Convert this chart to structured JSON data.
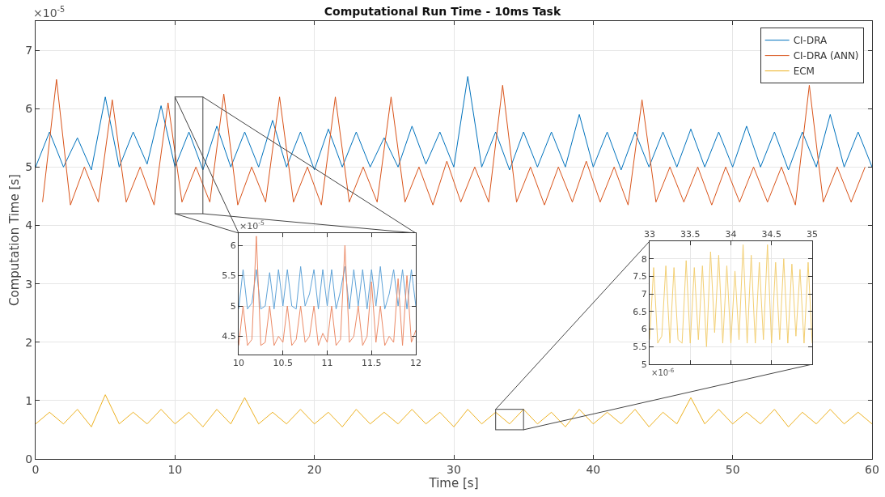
{
  "chart_data": [
    {
      "type": "line",
      "title": "Computational Run Time - 10ms Task",
      "xlabel": "Time [s]",
      "ylabel": "Computation Time [s]",
      "annotations": [
        "×10$^{-5}$"
      ],
      "xlim": [
        0,
        60
      ],
      "xticks": [
        0,
        10,
        20,
        30,
        40,
        50,
        60
      ],
      "ylim": [
        0,
        7.5
      ],
      "yticks": [
        0,
        1,
        2,
        3,
        4,
        5,
        6,
        7
      ],
      "grid": true,
      "legend": "top right",
      "series": [
        {
          "name": "CI-DRA",
          "color": "#0072bd",
          "x": [
            0,
            1,
            2,
            3,
            4,
            5,
            6,
            7,
            8,
            9,
            10,
            11,
            12,
            13,
            14,
            15,
            16,
            17,
            18,
            19,
            20,
            21,
            22,
            23,
            24,
            25,
            26,
            27,
            28,
            29,
            30,
            31,
            32,
            33,
            34,
            35,
            36,
            37,
            38,
            39,
            40,
            41,
            42,
            43,
            44,
            45,
            46,
            47,
            48,
            49,
            50,
            51,
            52,
            53,
            54,
            55,
            56,
            57,
            58,
            59,
            60
          ],
          "values": [
            5.0,
            5.6,
            5.0,
            5.5,
            4.95,
            6.2,
            5.0,
            5.6,
            5.05,
            6.05,
            5.0,
            5.6,
            4.95,
            5.7,
            5.0,
            5.6,
            5.0,
            5.8,
            5.0,
            5.6,
            4.95,
            5.65,
            5.0,
            5.6,
            5.0,
            5.5,
            5.0,
            5.7,
            5.05,
            5.6,
            5.0,
            6.55,
            5.0,
            5.6,
            4.95,
            5.6,
            5.0,
            5.6,
            5.0,
            5.9,
            5.0,
            5.6,
            4.95,
            5.6,
            5.0,
            5.6,
            5.0,
            5.65,
            5.0,
            5.6,
            5.0,
            5.7,
            5.0,
            5.6,
            4.95,
            5.6,
            5.0,
            5.9,
            5.0,
            5.6,
            5.0
          ]
        },
        {
          "name": "CI-DRA (ANN)",
          "color": "#d95319",
          "x": [
            0.5,
            1.5,
            2.5,
            3.5,
            4.5,
            5.5,
            6.5,
            7.5,
            8.5,
            9.5,
            10.5,
            11.5,
            12.5,
            13.5,
            14.5,
            15.5,
            16.5,
            17.5,
            18.5,
            19.5,
            20.5,
            21.5,
            22.5,
            23.5,
            24.5,
            25.5,
            26.5,
            27.5,
            28.5,
            29.5,
            30.5,
            31.5,
            32.5,
            33.5,
            34.5,
            35.5,
            36.5,
            37.5,
            38.5,
            39.5,
            40.5,
            41.5,
            42.5,
            43.5,
            44.5,
            45.5,
            46.5,
            47.5,
            48.5,
            49.5,
            50.5,
            51.5,
            52.5,
            53.5,
            54.5,
            55.5,
            56.5,
            57.5,
            58.5,
            59.5
          ],
          "values": [
            4.4,
            6.5,
            4.35,
            5.0,
            4.4,
            6.15,
            4.4,
            5.0,
            4.35,
            6.1,
            4.4,
            5.0,
            4.4,
            6.25,
            4.35,
            5.0,
            4.4,
            6.2,
            4.4,
            5.0,
            4.35,
            6.2,
            4.4,
            5.0,
            4.4,
            6.2,
            4.4,
            5.0,
            4.35,
            5.1,
            4.4,
            5.0,
            4.4,
            6.4,
            4.4,
            5.0,
            4.35,
            5.0,
            4.4,
            5.1,
            4.4,
            5.0,
            4.35,
            6.15,
            4.4,
            5.0,
            4.4,
            5.0,
            4.35,
            5.0,
            4.4,
            5.0,
            4.4,
            5.0,
            4.35,
            6.4,
            4.4,
            5.0,
            4.4,
            5.0
          ]
        },
        {
          "name": "ECM",
          "color": "#edb120",
          "x": [
            0,
            1,
            2,
            3,
            4,
            5,
            6,
            7,
            8,
            9,
            10,
            11,
            12,
            13,
            14,
            15,
            16,
            17,
            18,
            19,
            20,
            21,
            22,
            23,
            24,
            25,
            26,
            27,
            28,
            29,
            30,
            31,
            32,
            33,
            34,
            35,
            36,
            37,
            38,
            39,
            40,
            41,
            42,
            43,
            44,
            45,
            46,
            47,
            48,
            49,
            50,
            51,
            52,
            53,
            54,
            55,
            56,
            57,
            58,
            59,
            60
          ],
          "values": [
            0.6,
            0.8,
            0.6,
            0.85,
            0.55,
            1.1,
            0.6,
            0.8,
            0.6,
            0.85,
            0.6,
            0.8,
            0.55,
            0.85,
            0.6,
            1.05,
            0.6,
            0.8,
            0.6,
            0.85,
            0.6,
            0.8,
            0.55,
            0.85,
            0.6,
            0.8,
            0.6,
            0.85,
            0.6,
            0.8,
            0.55,
            0.85,
            0.6,
            0.8,
            0.6,
            0.85,
            0.6,
            0.8,
            0.55,
            0.85,
            0.6,
            0.8,
            0.6,
            0.85,
            0.55,
            0.8,
            0.6,
            1.05,
            0.6,
            0.85,
            0.6,
            0.8,
            0.6,
            0.85,
            0.55,
            0.8,
            0.6,
            0.85,
            0.6,
            0.8,
            0.6
          ]
        }
      ]
    },
    {
      "type": "line",
      "annotations": [
        "×10$^{-5}$"
      ],
      "xlim": [
        10,
        12
      ],
      "xticks": [
        10,
        10.5,
        11,
        11.5,
        12
      ],
      "ylim": [
        4.2,
        6.2
      ],
      "yticks": [
        4.5,
        5,
        5.5,
        6
      ],
      "grid": true,
      "series": [
        {
          "color": "#5fa3d8",
          "x": [
            10,
            10.05,
            10.1,
            10.15,
            10.2,
            10.25,
            10.3,
            10.35,
            10.4,
            10.45,
            10.5,
            10.55,
            10.6,
            10.65,
            10.7,
            10.75,
            10.8,
            10.85,
            10.9,
            10.95,
            11,
            11.05,
            11.1,
            11.15,
            11.2,
            11.25,
            11.3,
            11.35,
            11.4,
            11.45,
            11.5,
            11.55,
            11.6,
            11.65,
            11.7,
            11.75,
            11.8,
            11.85,
            11.9,
            11.95,
            12
          ],
          "values": [
            4.95,
            5.6,
            4.95,
            5.05,
            5.6,
            4.95,
            5.0,
            5.55,
            4.95,
            5.6,
            5.0,
            5.6,
            5.0,
            4.95,
            5.65,
            5.0,
            5.2,
            5.6,
            4.95,
            5.6,
            5.0,
            5.6,
            4.95,
            5.25,
            5.65,
            4.95,
            5.6,
            5.0,
            5.6,
            4.95,
            5.6,
            5.0,
            5.65,
            4.95,
            5.2,
            5.6,
            5.0,
            5.6,
            4.95,
            5.6,
            5.0
          ]
        },
        {
          "color": "#ec8a66",
          "x": [
            10,
            10.05,
            10.1,
            10.15,
            10.2,
            10.25,
            10.3,
            10.35,
            10.4,
            10.45,
            10.5,
            10.55,
            10.6,
            10.65,
            10.7,
            10.75,
            10.8,
            10.85,
            10.9,
            10.95,
            11,
            11.05,
            11.1,
            11.15,
            11.2,
            11.25,
            11.3,
            11.35,
            11.4,
            11.45,
            11.5,
            11.55,
            11.6,
            11.65,
            11.7,
            11.75,
            11.8,
            11.85,
            11.9,
            11.95,
            12
          ],
          "values": [
            4.35,
            5.0,
            4.35,
            4.45,
            6.15,
            4.35,
            4.4,
            5.0,
            4.35,
            4.5,
            4.4,
            5.0,
            4.35,
            4.45,
            5.0,
            4.4,
            4.5,
            5.0,
            4.35,
            4.55,
            4.4,
            5.0,
            4.35,
            4.45,
            6.0,
            4.4,
            4.5,
            5.0,
            4.35,
            4.5,
            5.4,
            4.4,
            5.0,
            4.35,
            4.5,
            4.4,
            5.45,
            4.35,
            5.5,
            4.4,
            4.6
          ]
        }
      ]
    },
    {
      "type": "line",
      "annotations": [
        "×10$^{-6}$"
      ],
      "xlim": [
        33,
        35
      ],
      "xticks": [
        33,
        33.5,
        34,
        34.5,
        35
      ],
      "ylim": [
        5,
        8.5
      ],
      "yticks": [
        5,
        5.5,
        6,
        6.5,
        7,
        7.5,
        8
      ],
      "grid": true,
      "series": [
        {
          "color": "#f3cf72",
          "x": [
            33,
            33.05,
            33.1,
            33.15,
            33.2,
            33.25,
            33.3,
            33.35,
            33.4,
            33.45,
            33.5,
            33.55,
            33.6,
            33.65,
            33.7,
            33.75,
            33.8,
            33.85,
            33.9,
            33.95,
            34,
            34.05,
            34.1,
            34.15,
            34.2,
            34.25,
            34.3,
            34.35,
            34.4,
            34.45,
            34.5,
            34.55,
            34.6,
            34.65,
            34.7,
            34.75,
            34.8,
            34.85,
            34.9,
            34.95,
            35
          ],
          "values": [
            5.7,
            7.75,
            5.6,
            5.8,
            7.8,
            5.6,
            7.75,
            5.7,
            5.6,
            7.95,
            5.6,
            7.75,
            5.7,
            7.8,
            5.5,
            8.2,
            5.9,
            8.1,
            5.6,
            7.8,
            5.6,
            7.65,
            5.7,
            8.4,
            5.6,
            8.1,
            5.6,
            7.9,
            5.7,
            8.4,
            5.6,
            7.9,
            5.7,
            8.0,
            5.6,
            7.85,
            5.8,
            7.7,
            5.6,
            7.9,
            5.6
          ]
        }
      ]
    }
  ]
}
